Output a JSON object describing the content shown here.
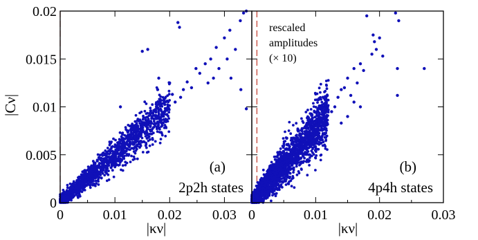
{
  "chart_data": [
    {
      "type": "scatter",
      "panel_label": "(a)",
      "annotation": "2p2h states",
      "xlabel": "|κν|",
      "ylabel": "|Cν|",
      "xlim": [
        0,
        0.035
      ],
      "ylim": [
        0,
        0.02
      ],
      "x_ticks": [
        "0",
        "0.01",
        "0.02",
        "0.03"
      ],
      "y_ticks": [
        "0",
        "0.005",
        "0.01",
        "0.015",
        "0.02"
      ],
      "marker_color": "#1010b8",
      "reference_line": {
        "x": 0,
        "color": "#c0392b",
        "style": "dashed"
      },
      "cloud": {
        "x_max": 0.02,
        "slope": 0.5,
        "spread": 0.0009,
        "count": 1600
      },
      "points": [
        {
          "x": 0.0335,
          "y": 0.0198
        },
        {
          "x": 0.034,
          "y": 0.02
        },
        {
          "x": 0.0329,
          "y": 0.019
        },
        {
          "x": 0.03,
          "y": 0.0172
        },
        {
          "x": 0.031,
          "y": 0.018
        },
        {
          "x": 0.0285,
          "y": 0.0162
        },
        {
          "x": 0.032,
          "y": 0.016
        },
        {
          "x": 0.0305,
          "y": 0.015
        },
        {
          "x": 0.0275,
          "y": 0.015
        },
        {
          "x": 0.029,
          "y": 0.014
        },
        {
          "x": 0.0265,
          "y": 0.0145
        },
        {
          "x": 0.0312,
          "y": 0.013
        },
        {
          "x": 0.028,
          "y": 0.013
        },
        {
          "x": 0.033,
          "y": 0.0118
        },
        {
          "x": 0.034,
          "y": 0.0098
        },
        {
          "x": 0.027,
          "y": 0.0125
        },
        {
          "x": 0.0255,
          "y": 0.0135
        },
        {
          "x": 0.0248,
          "y": 0.014
        },
        {
          "x": 0.0232,
          "y": 0.0126
        },
        {
          "x": 0.024,
          "y": 0.012
        },
        {
          "x": 0.022,
          "y": 0.011
        },
        {
          "x": 0.021,
          "y": 0.0105
        },
        {
          "x": 0.0225,
          "y": 0.0118
        },
        {
          "x": 0.0215,
          "y": 0.0188
        },
        {
          "x": 0.0218,
          "y": 0.0183
        },
        {
          "x": 0.015,
          "y": 0.0158
        },
        {
          "x": 0.016,
          "y": 0.016
        },
        {
          "x": 0.011,
          "y": 0.01
        },
        {
          "x": 0.018,
          "y": 0.013
        },
        {
          "x": 0.0178,
          "y": 0.0118
        },
        {
          "x": 0.013,
          "y": 0.0075
        },
        {
          "x": 0.0195,
          "y": 0.0092
        },
        {
          "x": 0.0185,
          "y": 0.009
        },
        {
          "x": 0.02,
          "y": 0.0125
        },
        {
          "x": 0.0205,
          "y": 0.0113
        },
        {
          "x": 0.019,
          "y": 0.0108
        }
      ]
    },
    {
      "type": "scatter",
      "panel_label": "(b)",
      "annotation": "4p4h states",
      "text_annotation": [
        "rescaled",
        "amplitudes",
        "(× 10)"
      ],
      "xlabel": "|κν|",
      "ylabel": "",
      "xlim": [
        0,
        0.03
      ],
      "ylim": [
        0,
        0.02
      ],
      "x_ticks": [
        "0",
        "0.01",
        "0.02",
        "0.03"
      ],
      "marker_color": "#1010b8",
      "reference_line": {
        "x": 0.0008,
        "color": "#c0392b",
        "style": "dashed"
      },
      "cloud": {
        "x_max": 0.012,
        "slope": 0.78,
        "spread": 0.0012,
        "count": 2600
      },
      "points": [
        {
          "x": 0.018,
          "y": 0.0195
        },
        {
          "x": 0.0225,
          "y": 0.0198
        },
        {
          "x": 0.023,
          "y": 0.019
        },
        {
          "x": 0.019,
          "y": 0.0175
        },
        {
          "x": 0.0192,
          "y": 0.0168
        },
        {
          "x": 0.02,
          "y": 0.0172
        },
        {
          "x": 0.0195,
          "y": 0.016
        },
        {
          "x": 0.0188,
          "y": 0.0155
        },
        {
          "x": 0.0205,
          "y": 0.0153
        },
        {
          "x": 0.017,
          "y": 0.0145
        },
        {
          "x": 0.016,
          "y": 0.014
        },
        {
          "x": 0.015,
          "y": 0.013
        },
        {
          "x": 0.0175,
          "y": 0.0138
        },
        {
          "x": 0.0165,
          "y": 0.0125
        },
        {
          "x": 0.0145,
          "y": 0.012
        },
        {
          "x": 0.014,
          "y": 0.0118
        },
        {
          "x": 0.0135,
          "y": 0.011
        },
        {
          "x": 0.0155,
          "y": 0.0112
        },
        {
          "x": 0.016,
          "y": 0.0105
        },
        {
          "x": 0.017,
          "y": 0.01
        },
        {
          "x": 0.013,
          "y": 0.01
        },
        {
          "x": 0.0228,
          "y": 0.014
        },
        {
          "x": 0.0228,
          "y": 0.0112
        },
        {
          "x": 0.027,
          "y": 0.014
        },
        {
          "x": 0.0125,
          "y": 0.0095
        },
        {
          "x": 0.015,
          "y": 0.009
        },
        {
          "x": 0.014,
          "y": 0.0083
        }
      ]
    }
  ]
}
